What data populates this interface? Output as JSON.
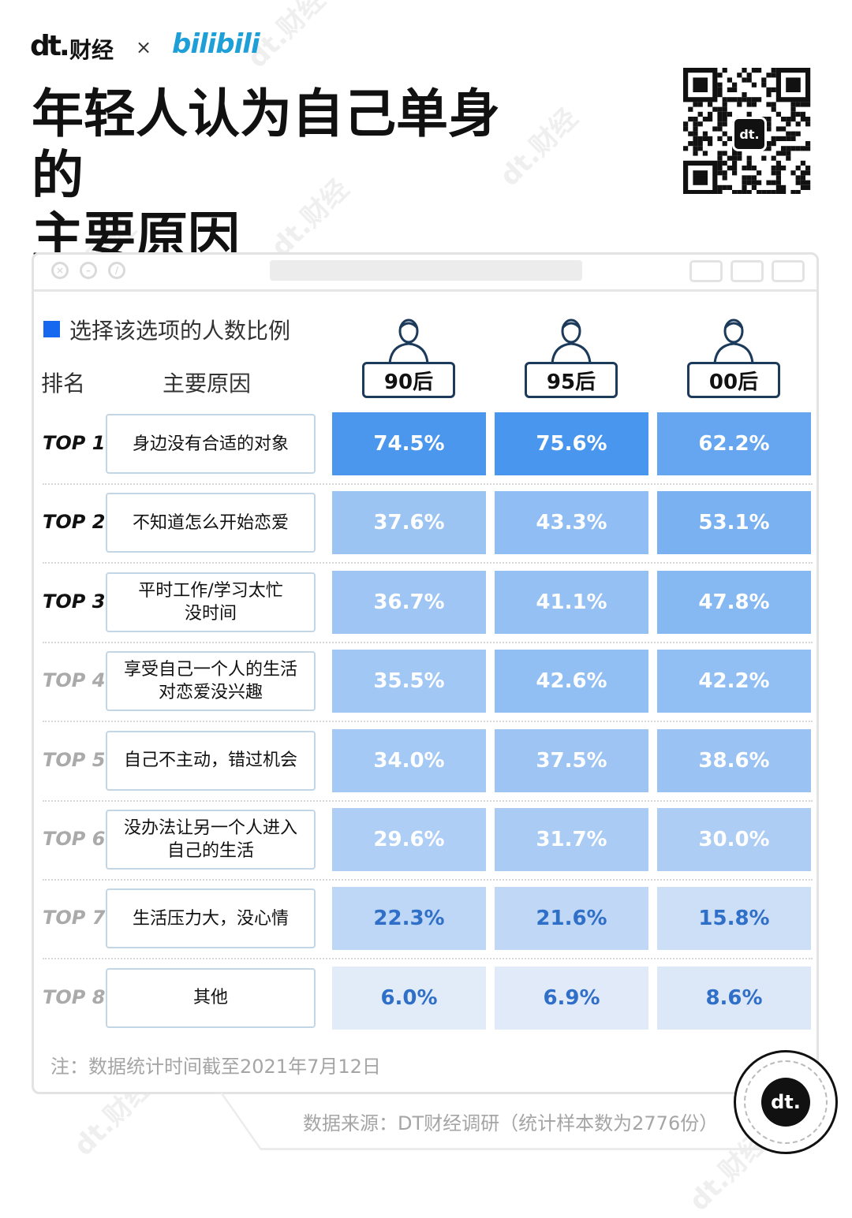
{
  "header": {
    "logo_dt": "dt.",
    "logo_cj": "财经",
    "cross": "×",
    "logo_bili": "bilibili",
    "title_line1": "年轻人认为自己单身的",
    "title_line2": "主要原因",
    "qr_badge": "dt."
  },
  "legend": {
    "label": "选择该选项的人数比例",
    "color": "#1669ee"
  },
  "table_header": {
    "rank": "排名",
    "reason": "主要原因"
  },
  "colors": {
    "accent_blue": "#1669ee",
    "rank_dark": "#111111",
    "rank_light": "#aaaaaa"
  },
  "chart_data": {
    "type": "table",
    "title": "年轻人认为自己单身的主要原因",
    "legend": [
      "选择该选项的人数比例"
    ],
    "columns": [
      "90后",
      "95后",
      "00后"
    ],
    "rows": [
      {
        "rank": "TOP 1",
        "reason": "身边没有合适的对象",
        "values": [
          74.5,
          75.6,
          62.2
        ],
        "labels": [
          "74.5%",
          "75.6%",
          "62.2%"
        ]
      },
      {
        "rank": "TOP 2",
        "reason": "不知道怎么开始恋爱",
        "values": [
          37.6,
          43.3,
          53.1
        ],
        "labels": [
          "37.6%",
          "43.3%",
          "53.1%"
        ]
      },
      {
        "rank": "TOP 3",
        "reason": "平时工作/学习太忙\n没时间",
        "values": [
          36.7,
          41.1,
          47.8
        ],
        "labels": [
          "36.7%",
          "41.1%",
          "47.8%"
        ]
      },
      {
        "rank": "TOP 4",
        "reason": "享受自己一个人的生活\n对恋爱没兴趣",
        "values": [
          35.5,
          42.6,
          42.2
        ],
        "labels": [
          "35.5%",
          "42.6%",
          "42.2%"
        ]
      },
      {
        "rank": "TOP 5",
        "reason": "自己不主动，错过机会",
        "values": [
          34.0,
          37.5,
          38.6
        ],
        "labels": [
          "34.0%",
          "37.5%",
          "38.6%"
        ]
      },
      {
        "rank": "TOP 6",
        "reason": "没办法让另一个人进入\n自己的生活",
        "values": [
          29.6,
          31.7,
          30.0
        ],
        "labels": [
          "29.6%",
          "31.7%",
          "30.0%"
        ]
      },
      {
        "rank": "TOP 7",
        "reason": "生活压力大，没心情",
        "values": [
          22.3,
          21.6,
          15.8
        ],
        "labels": [
          "22.3%",
          "21.6%",
          "15.8%"
        ]
      },
      {
        "rank": "TOP 8",
        "reason": "其他",
        "values": [
          6.0,
          6.9,
          8.6
        ],
        "labels": [
          "6.0%",
          "6.9%",
          "8.6%"
        ]
      }
    ]
  },
  "footer": {
    "note": "注：数据统计时间截至2021年7月12日",
    "source": "数据来源：DT财经调研（统计样本数为2776份）",
    "corner_logo": "dt."
  },
  "watermark": "dt.财经"
}
